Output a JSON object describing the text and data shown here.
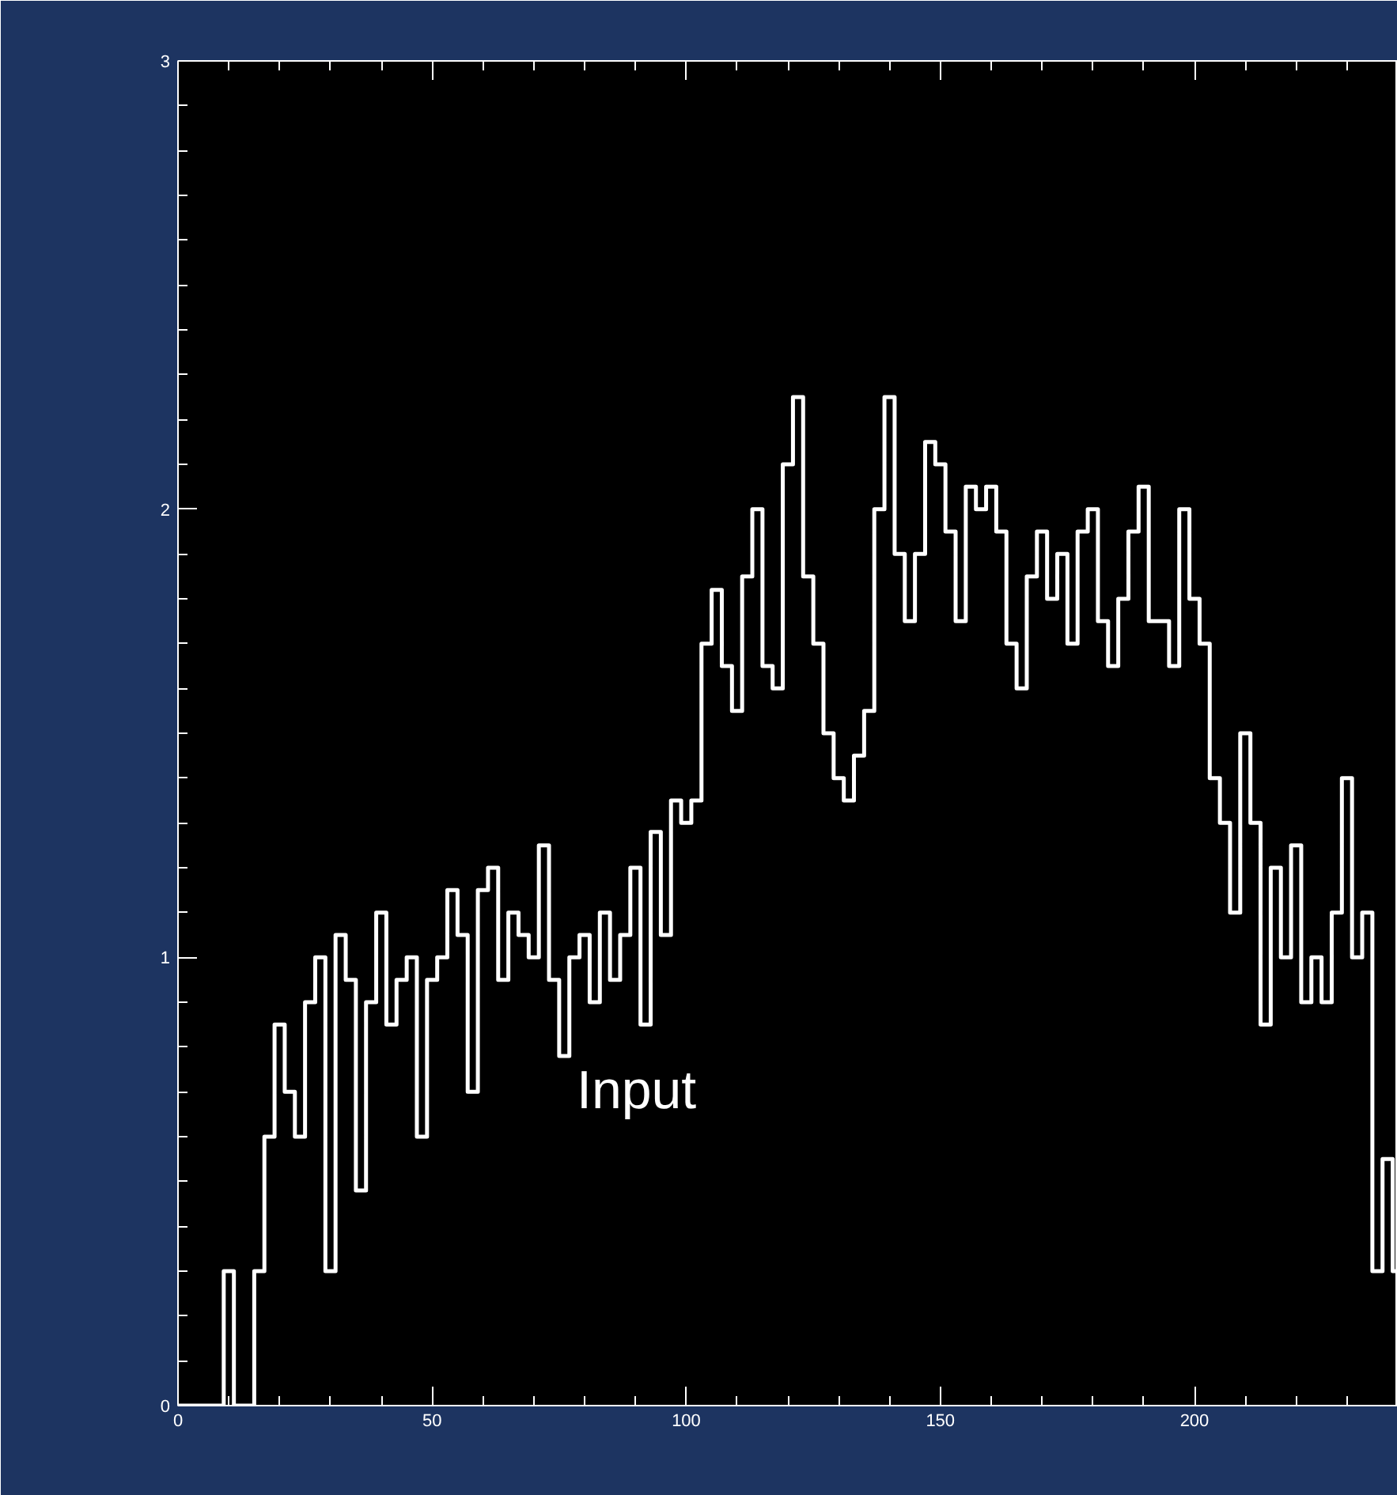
{
  "chart_data": {
    "type": "step",
    "x": [
      0,
      2,
      4,
      6,
      8,
      10,
      12,
      14,
      16,
      18,
      20,
      22,
      24,
      26,
      28,
      30,
      32,
      34,
      36,
      38,
      40,
      42,
      44,
      46,
      48,
      50,
      52,
      54,
      56,
      58,
      60,
      62,
      64,
      66,
      68,
      70,
      72,
      74,
      76,
      78,
      80,
      82,
      84,
      86,
      88,
      90,
      92,
      94,
      96,
      98,
      100,
      102,
      104,
      106,
      108,
      110,
      112,
      114,
      116,
      118,
      120,
      122,
      124,
      126,
      128,
      130,
      132,
      134,
      136,
      138,
      140,
      142,
      144,
      146,
      148,
      150,
      152,
      154,
      156,
      158,
      160,
      162,
      164,
      166,
      168,
      170,
      172,
      174,
      176,
      178,
      180,
      182,
      184,
      186,
      188,
      190,
      192,
      194,
      196,
      198,
      200,
      202,
      204,
      206,
      208,
      210,
      212,
      214,
      216,
      218,
      220,
      222,
      224,
      226,
      228,
      230,
      232,
      234,
      236,
      238,
      240
    ],
    "series": [
      {
        "color": "#ffffff",
        "values": [
          0,
          0,
          0,
          0,
          0,
          0.3,
          0,
          0,
          0.3,
          0.6,
          0.85,
          0.7,
          0.6,
          0.9,
          1.0,
          0.3,
          1.05,
          0.95,
          0.48,
          0.9,
          1.1,
          0.85,
          0.95,
          1.0,
          0.6,
          0.95,
          1.0,
          1.15,
          1.05,
          0.7,
          1.15,
          1.2,
          0.95,
          1.1,
          1.05,
          1.0,
          1.25,
          0.95,
          0.78,
          1.0,
          1.05,
          0.9,
          1.1,
          0.95,
          1.05,
          1.2,
          0.85,
          1.28,
          1.05,
          1.35,
          1.3,
          1.35,
          1.7,
          1.82,
          1.65,
          1.55,
          1.85,
          2.0,
          1.65,
          1.6,
          2.1,
          2.25,
          1.85,
          1.7,
          1.5,
          1.4,
          1.35,
          1.45,
          1.55,
          2.0,
          2.25,
          1.9,
          1.75,
          1.9,
          2.15,
          2.1,
          1.95,
          1.75,
          2.05,
          2.0,
          2.05,
          1.95,
          1.7,
          1.6,
          1.85,
          1.95,
          1.8,
          1.9,
          1.7,
          1.95,
          2.0,
          1.75,
          1.65,
          1.8,
          1.95,
          2.05,
          1.75,
          1.75,
          1.65,
          2.0,
          1.8,
          1.7,
          1.4,
          1.3,
          1.1,
          1.5,
          1.3,
          0.85,
          1.2,
          1.0,
          1.25,
          0.9,
          1.0,
          0.9,
          1.1,
          1.4,
          1.0,
          1.1,
          0.3,
          0.55,
          0.3
        ]
      }
    ],
    "xlim": [
      0,
      240
    ],
    "ylim": [
      0,
      3
    ],
    "xticks": [
      0,
      50,
      100,
      150,
      200
    ],
    "yticks": [
      0,
      1,
      2,
      3
    ],
    "grid": false,
    "annotations": [
      "Input"
    ]
  }
}
